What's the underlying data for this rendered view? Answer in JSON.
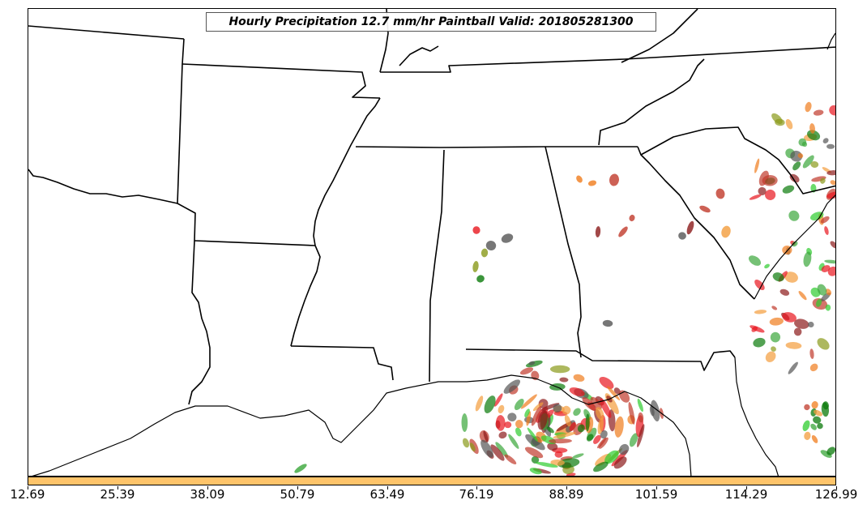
{
  "title": "Hourly Precipitation 12.7 mm/hr Paintball Valid: 201805281300",
  "colorbar": {
    "color": "#fec46a",
    "ticks": [
      "12.69",
      "25.39",
      "38.09",
      "50.79",
      "63.49",
      "76.19",
      "88.89",
      "101.59",
      "114.29",
      "126.99"
    ]
  },
  "member_colors": [
    "#e8161e",
    "#f07c1c",
    "#2ecc2e",
    "#0a7a0a",
    "#8b1a1a",
    "#8a9a1a",
    "#555555",
    "#c0392b",
    "#f39c3c",
    "#3aa63a"
  ]
}
